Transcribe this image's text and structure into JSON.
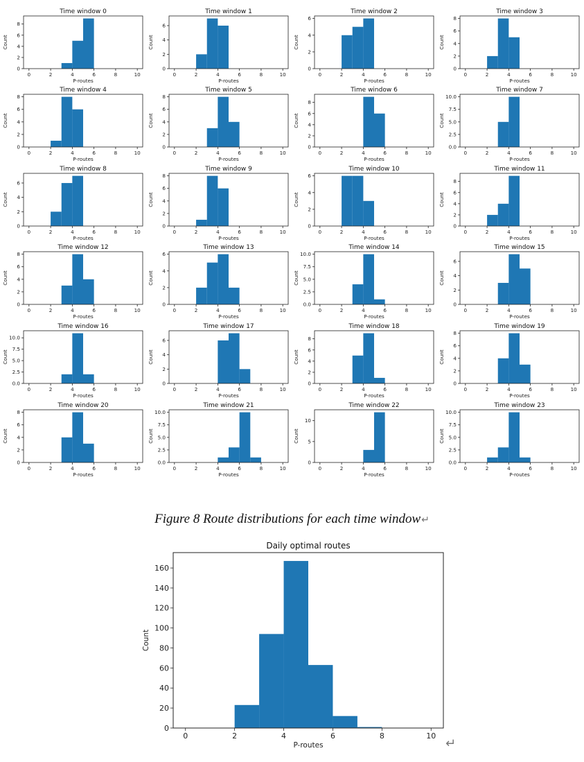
{
  "figure": {
    "caption": "Figure 8 Route distributions for each time window",
    "return_glyph": "↵"
  },
  "chart_data": [
    {
      "type": "bar",
      "title": "Time window 0",
      "xlabel": "P-routes",
      "ylabel": "Count",
      "bin_width": 1,
      "bins": [
        3,
        4,
        5
      ],
      "values": [
        1,
        5,
        9
      ],
      "xlim": [
        -0.5,
        10.5
      ],
      "ylim": [
        0,
        9.45
      ],
      "xticks": [
        0,
        2,
        4,
        6,
        8,
        10
      ],
      "yticks": [
        0,
        2,
        4,
        6,
        8
      ],
      "color": "#1f77b4"
    },
    {
      "type": "bar",
      "title": "Time window 1",
      "xlabel": "P-routes",
      "ylabel": "Count",
      "bin_width": 1,
      "bins": [
        2,
        3,
        4
      ],
      "values": [
        2,
        7,
        6
      ],
      "xlim": [
        -0.5,
        10.5
      ],
      "ylim": [
        0,
        7.35
      ],
      "xticks": [
        0,
        2,
        4,
        6,
        8,
        10
      ],
      "yticks": [
        0,
        2,
        4,
        6
      ],
      "color": "#1f77b4"
    },
    {
      "type": "bar",
      "title": "Time window 2",
      "xlabel": "P-routes",
      "ylabel": "Count",
      "bin_width": 1,
      "bins": [
        2,
        3,
        4
      ],
      "values": [
        4,
        5,
        6
      ],
      "xlim": [
        -0.5,
        10.5
      ],
      "ylim": [
        0,
        6.3
      ],
      "xticks": [
        0,
        2,
        4,
        6,
        8,
        10
      ],
      "yticks": [
        0,
        2,
        4,
        6
      ],
      "color": "#1f77b4"
    },
    {
      "type": "bar",
      "title": "Time window 3",
      "xlabel": "P-routes",
      "ylabel": "Count",
      "bin_width": 1,
      "bins": [
        2,
        3,
        4
      ],
      "values": [
        2,
        8,
        5
      ],
      "xlim": [
        -0.5,
        10.5
      ],
      "ylim": [
        0,
        8.4
      ],
      "xticks": [
        0,
        2,
        4,
        6,
        8,
        10
      ],
      "yticks": [
        0,
        2,
        4,
        6,
        8
      ],
      "color": "#1f77b4"
    },
    {
      "type": "bar",
      "title": "Time window 4",
      "xlabel": "P-routes",
      "ylabel": "Count",
      "bin_width": 1,
      "bins": [
        2,
        3,
        4
      ],
      "values": [
        1,
        8,
        6
      ],
      "xlim": [
        -0.5,
        10.5
      ],
      "ylim": [
        0,
        8.4
      ],
      "xticks": [
        0,
        2,
        4,
        6,
        8,
        10
      ],
      "yticks": [
        0,
        2,
        4,
        6,
        8
      ],
      "color": "#1f77b4"
    },
    {
      "type": "bar",
      "title": "Time window 5",
      "xlabel": "P-routes",
      "ylabel": "Count",
      "bin_width": 1,
      "bins": [
        3,
        4,
        5
      ],
      "values": [
        3,
        8,
        4
      ],
      "xlim": [
        -0.5,
        10.5
      ],
      "ylim": [
        0,
        8.4
      ],
      "xticks": [
        0,
        2,
        4,
        6,
        8,
        10
      ],
      "yticks": [
        0,
        2,
        4,
        6,
        8
      ],
      "color": "#1f77b4"
    },
    {
      "type": "bar",
      "title": "Time window 6",
      "xlabel": "P-routes",
      "ylabel": "Count",
      "bin_width": 1,
      "bins": [
        4,
        5
      ],
      "values": [
        9,
        6
      ],
      "xlim": [
        -0.5,
        10.5
      ],
      "ylim": [
        0,
        9.45
      ],
      "xticks": [
        0,
        2,
        4,
        6,
        8,
        10
      ],
      "yticks": [
        0,
        2,
        4,
        6,
        8
      ],
      "color": "#1f77b4"
    },
    {
      "type": "bar",
      "title": "Time window 7",
      "xlabel": "P-routes",
      "ylabel": "Count",
      "bin_width": 1,
      "bins": [
        3,
        4
      ],
      "values": [
        5,
        10
      ],
      "xlim": [
        -0.5,
        10.5
      ],
      "ylim": [
        0,
        10.5
      ],
      "xticks": [
        0,
        2,
        4,
        6,
        8,
        10
      ],
      "yticks": [
        0,
        2.5,
        5,
        7.5,
        10
      ],
      "ytick_labels": [
        "0.0",
        "2.5",
        "5.0",
        "7.5",
        "10.0"
      ],
      "color": "#1f77b4"
    },
    {
      "type": "bar",
      "title": "Time window 8",
      "xlabel": "P-routes",
      "ylabel": "Count",
      "bin_width": 1,
      "bins": [
        2,
        3,
        4
      ],
      "values": [
        2,
        6,
        7
      ],
      "xlim": [
        -0.5,
        10.5
      ],
      "ylim": [
        0,
        7.35
      ],
      "xticks": [
        0,
        2,
        4,
        6,
        8,
        10
      ],
      "yticks": [
        0,
        2,
        4,
        6
      ],
      "color": "#1f77b4"
    },
    {
      "type": "bar",
      "title": "Time window 9",
      "xlabel": "P-routes",
      "ylabel": "Count",
      "bin_width": 1,
      "bins": [
        2,
        3,
        4
      ],
      "values": [
        1,
        8,
        6
      ],
      "xlim": [
        -0.5,
        10.5
      ],
      "ylim": [
        0,
        8.4
      ],
      "xticks": [
        0,
        2,
        4,
        6,
        8,
        10
      ],
      "yticks": [
        0,
        2,
        4,
        6,
        8
      ],
      "color": "#1f77b4"
    },
    {
      "type": "bar",
      "title": "Time window 10",
      "xlabel": "P-routes",
      "ylabel": "Count",
      "bin_width": 1,
      "bins": [
        2,
        3,
        4
      ],
      "values": [
        6,
        6,
        3
      ],
      "xlim": [
        -0.5,
        10.5
      ],
      "ylim": [
        0,
        6.3
      ],
      "xticks": [
        0,
        2,
        4,
        6,
        8,
        10
      ],
      "yticks": [
        0,
        2,
        4,
        6
      ],
      "color": "#1f77b4"
    },
    {
      "type": "bar",
      "title": "Time window 11",
      "xlabel": "P-routes",
      "ylabel": "Count",
      "bin_width": 1,
      "bins": [
        2,
        3,
        4
      ],
      "values": [
        2,
        4,
        9
      ],
      "xlim": [
        -0.5,
        10.5
      ],
      "ylim": [
        0,
        9.45
      ],
      "xticks": [
        0,
        2,
        4,
        6,
        8,
        10
      ],
      "yticks": [
        0,
        2,
        4,
        6,
        8
      ],
      "color": "#1f77b4"
    },
    {
      "type": "bar",
      "title": "Time window 12",
      "xlabel": "P-routes",
      "ylabel": "Count",
      "bin_width": 1,
      "bins": [
        3,
        4,
        5
      ],
      "values": [
        3,
        8,
        4
      ],
      "xlim": [
        -0.5,
        10.5
      ],
      "ylim": [
        0,
        8.4
      ],
      "xticks": [
        0,
        2,
        4,
        6,
        8,
        10
      ],
      "yticks": [
        0,
        2,
        4,
        6,
        8
      ],
      "color": "#1f77b4"
    },
    {
      "type": "bar",
      "title": "Time window 13",
      "xlabel": "P-routes",
      "ylabel": "Count",
      "bin_width": 1,
      "bins": [
        2,
        3,
        4,
        5
      ],
      "values": [
        2,
        5,
        6,
        2
      ],
      "xlim": [
        -0.5,
        10.5
      ],
      "ylim": [
        0,
        6.3
      ],
      "xticks": [
        0,
        2,
        4,
        6,
        8,
        10
      ],
      "yticks": [
        0,
        2,
        4,
        6
      ],
      "color": "#1f77b4"
    },
    {
      "type": "bar",
      "title": "Time window 14",
      "xlabel": "P-routes",
      "ylabel": "Count",
      "bin_width": 1,
      "bins": [
        3,
        4,
        5
      ],
      "values": [
        4,
        10,
        1
      ],
      "xlim": [
        -0.5,
        10.5
      ],
      "ylim": [
        0,
        10.5
      ],
      "xticks": [
        0,
        2,
        4,
        6,
        8,
        10
      ],
      "yticks": [
        0,
        2.5,
        5,
        7.5,
        10
      ],
      "ytick_labels": [
        "0.0",
        "2.5",
        "5.0",
        "7.5",
        "10.0"
      ],
      "color": "#1f77b4"
    },
    {
      "type": "bar",
      "title": "Time window 15",
      "xlabel": "P-routes",
      "ylabel": "Count",
      "bin_width": 1,
      "bins": [
        3,
        4,
        5
      ],
      "values": [
        3,
        7,
        5
      ],
      "xlim": [
        -0.5,
        10.5
      ],
      "ylim": [
        0,
        7.35
      ],
      "xticks": [
        0,
        2,
        4,
        6,
        8,
        10
      ],
      "yticks": [
        0,
        2,
        4,
        6
      ],
      "color": "#1f77b4"
    },
    {
      "type": "bar",
      "title": "Time window 16",
      "xlabel": "P-routes",
      "ylabel": "Count",
      "bin_width": 1,
      "bins": [
        3,
        4,
        5
      ],
      "values": [
        2,
        11,
        2
      ],
      "xlim": [
        -0.5,
        10.5
      ],
      "ylim": [
        0,
        11.55
      ],
      "xticks": [
        0,
        2,
        4,
        6,
        8,
        10
      ],
      "yticks": [
        0,
        2.5,
        5,
        7.5,
        10
      ],
      "ytick_labels": [
        "0.0",
        "2.5",
        "5.0",
        "7.5",
        "10.0"
      ],
      "color": "#1f77b4"
    },
    {
      "type": "bar",
      "title": "Time window 17",
      "xlabel": "P-routes",
      "ylabel": "Count",
      "bin_width": 1,
      "bins": [
        4,
        5,
        6
      ],
      "values": [
        6,
        7,
        2
      ],
      "xlim": [
        -0.5,
        10.5
      ],
      "ylim": [
        0,
        7.35
      ],
      "xticks": [
        0,
        2,
        4,
        6,
        8,
        10
      ],
      "yticks": [
        0,
        2,
        4,
        6
      ],
      "color": "#1f77b4"
    },
    {
      "type": "bar",
      "title": "Time window 18",
      "xlabel": "P-routes",
      "ylabel": "Count",
      "bin_width": 1,
      "bins": [
        3,
        4,
        5
      ],
      "values": [
        5,
        9,
        1
      ],
      "xlim": [
        -0.5,
        10.5
      ],
      "ylim": [
        0,
        9.45
      ],
      "xticks": [
        0,
        2,
        4,
        6,
        8,
        10
      ],
      "yticks": [
        0,
        2,
        4,
        6,
        8
      ],
      "color": "#1f77b4"
    },
    {
      "type": "bar",
      "title": "Time window 19",
      "xlabel": "P-routes",
      "ylabel": "Count",
      "bin_width": 1,
      "bins": [
        3,
        4,
        5
      ],
      "values": [
        4,
        8,
        3
      ],
      "xlim": [
        -0.5,
        10.5
      ],
      "ylim": [
        0,
        8.4
      ],
      "xticks": [
        0,
        2,
        4,
        6,
        8,
        10
      ],
      "yticks": [
        0,
        2,
        4,
        6,
        8
      ],
      "color": "#1f77b4"
    },
    {
      "type": "bar",
      "title": "Time window 20",
      "xlabel": "P-routes",
      "ylabel": "Count",
      "bin_width": 1,
      "bins": [
        3,
        4,
        5
      ],
      "values": [
        4,
        8,
        3
      ],
      "xlim": [
        -0.5,
        10.5
      ],
      "ylim": [
        0,
        8.4
      ],
      "xticks": [
        0,
        2,
        4,
        6,
        8,
        10
      ],
      "yticks": [
        0,
        2,
        4,
        6,
        8
      ],
      "color": "#1f77b4"
    },
    {
      "type": "bar",
      "title": "Time window 21",
      "xlabel": "P-routes",
      "ylabel": "Count",
      "bin_width": 1,
      "bins": [
        4,
        5,
        6,
        7
      ],
      "values": [
        1,
        3,
        10,
        1
      ],
      "xlim": [
        -0.5,
        10.5
      ],
      "ylim": [
        0,
        10.5
      ],
      "xticks": [
        0,
        2,
        4,
        6,
        8,
        10
      ],
      "yticks": [
        0,
        2.5,
        5,
        7.5,
        10
      ],
      "ytick_labels": [
        "0.0",
        "2.5",
        "5.0",
        "7.5",
        "10.0"
      ],
      "color": "#1f77b4"
    },
    {
      "type": "bar",
      "title": "Time window 22",
      "xlabel": "P-routes",
      "ylabel": "Count",
      "bin_width": 1,
      "bins": [
        4,
        5
      ],
      "values": [
        3,
        12
      ],
      "xlim": [
        -0.5,
        10.5
      ],
      "ylim": [
        0,
        12.6
      ],
      "xticks": [
        0,
        2,
        4,
        6,
        8,
        10
      ],
      "yticks": [
        0,
        5,
        10
      ],
      "color": "#1f77b4"
    },
    {
      "type": "bar",
      "title": "Time window 23",
      "xlabel": "P-routes",
      "ylabel": "Count",
      "bin_width": 1,
      "bins": [
        2,
        3,
        4,
        5
      ],
      "values": [
        1,
        3,
        10,
        1
      ],
      "xlim": [
        -0.5,
        10.5
      ],
      "ylim": [
        0,
        10.5
      ],
      "xticks": [
        0,
        2,
        4,
        6,
        8,
        10
      ],
      "yticks": [
        0,
        2.5,
        5,
        7.5,
        10
      ],
      "ytick_labels": [
        "0.0",
        "2.5",
        "5.0",
        "7.5",
        "10.0"
      ],
      "color": "#1f77b4"
    },
    {
      "type": "bar",
      "title": "Daily optimal routes",
      "xlabel": "P-routes",
      "ylabel": "Count",
      "bin_width": 1,
      "bins": [
        2,
        3,
        4,
        5,
        6,
        7
      ],
      "values": [
        23,
        94,
        167,
        63,
        12,
        1
      ],
      "xlim": [
        -0.5,
        10.5
      ],
      "ylim": [
        0,
        175.35
      ],
      "xticks": [
        0,
        2,
        4,
        6,
        8,
        10
      ],
      "yticks": [
        0,
        20,
        40,
        60,
        80,
        100,
        120,
        140,
        160
      ],
      "color": "#1f77b4"
    }
  ]
}
